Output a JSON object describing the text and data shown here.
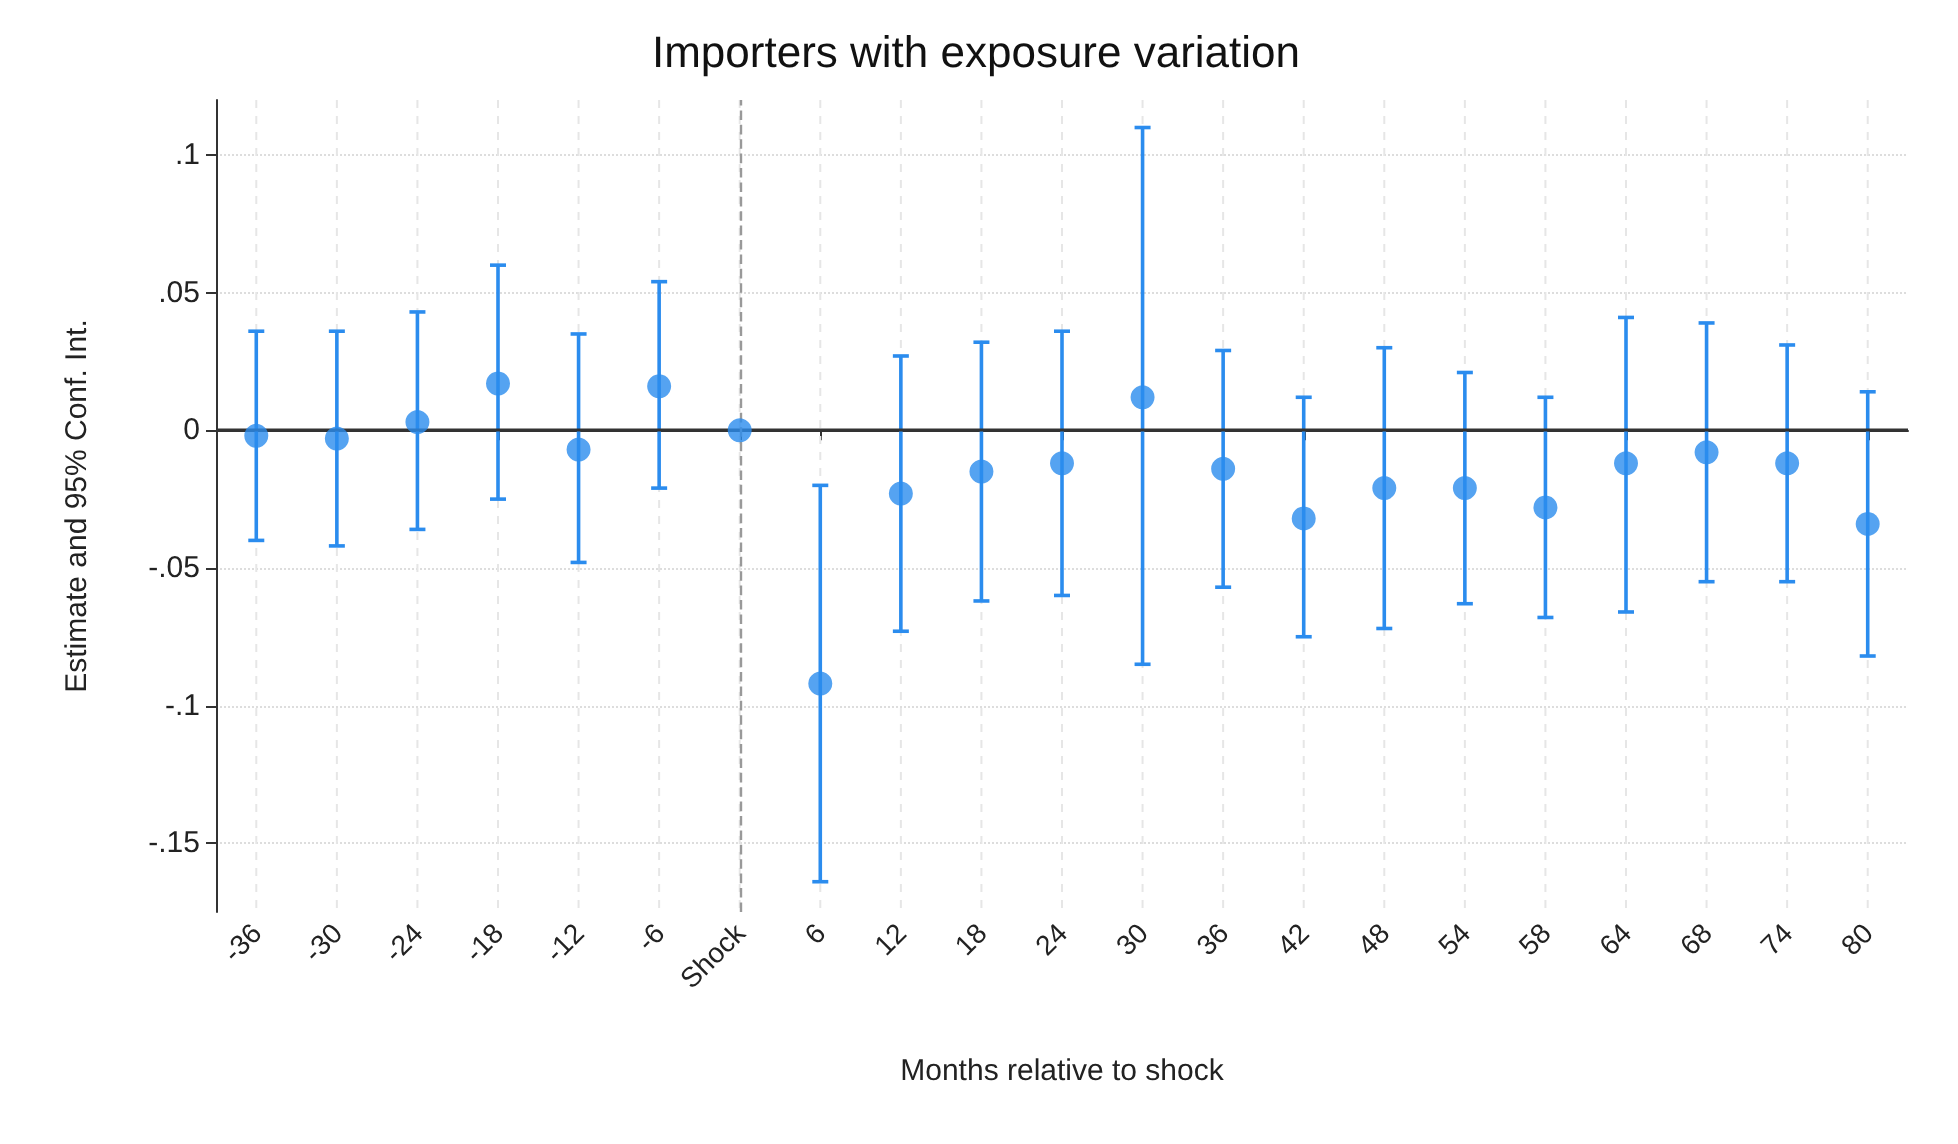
{
  "chart_data": {
    "type": "scatter",
    "title": "Importers with exposure variation",
    "xlabel": "Months relative to shock",
    "ylabel": "Estimate and 95% Conf. Int.",
    "categories": [
      "-36",
      "-30",
      "-24",
      "-18",
      "-12",
      "-6",
      "Shock",
      "6",
      "12",
      "18",
      "24",
      "30",
      "36",
      "42",
      "48",
      "54",
      "58",
      "64",
      "68",
      "74",
      "80"
    ],
    "series": [
      {
        "color": "#2b8cee",
        "values": [
          -0.002,
          -0.003,
          0.003,
          0.017,
          -0.007,
          0.016,
          0,
          -0.092,
          -0.023,
          -0.015,
          -0.012,
          0.012,
          -0.014,
          -0.032,
          -0.021,
          -0.021,
          -0.028,
          -0.012,
          -0.008,
          -0.012,
          -0.034
        ],
        "errors": [
          [
            -0.04,
            0.036
          ],
          [
            -0.042,
            0.036
          ],
          [
            -0.036,
            0.043
          ],
          [
            -0.025,
            0.06
          ],
          [
            -0.048,
            0.035
          ],
          [
            -0.021,
            0.054
          ],
          null,
          [
            -0.164,
            -0.02
          ],
          [
            -0.073,
            0.027
          ],
          [
            -0.062,
            0.032
          ],
          [
            -0.06,
            0.036
          ],
          [
            -0.085,
            0.11
          ],
          [
            -0.057,
            0.029
          ],
          [
            -0.075,
            0.012
          ],
          [
            -0.072,
            0.03
          ],
          [
            -0.063,
            0.021
          ],
          [
            -0.068,
            0.012
          ],
          [
            -0.066,
            0.041
          ],
          [
            -0.055,
            0.039
          ],
          [
            -0.055,
            0.031
          ],
          [
            -0.082,
            0.014
          ]
        ]
      }
    ],
    "ylim": [
      -0.175,
      0.12
    ],
    "yticks": [
      {
        "value": -0.15,
        "label": "-.15"
      },
      {
        "value": -0.1,
        "label": "-.1"
      },
      {
        "value": -0.05,
        "label": "-.05"
      },
      0,
      {
        "value": 0.05,
        "label": ".05"
      },
      {
        "value": 0.1,
        "label": ".1"
      }
    ],
    "ref_lines": [
      {
        "axis": "y",
        "value": 0,
        "color": "#333333",
        "line_style": "solid"
      },
      {
        "axis": "x",
        "value": "Shock",
        "color": "#999999",
        "line_style": "dashed"
      }
    ],
    "grid": true,
    "marker": "circle"
  }
}
